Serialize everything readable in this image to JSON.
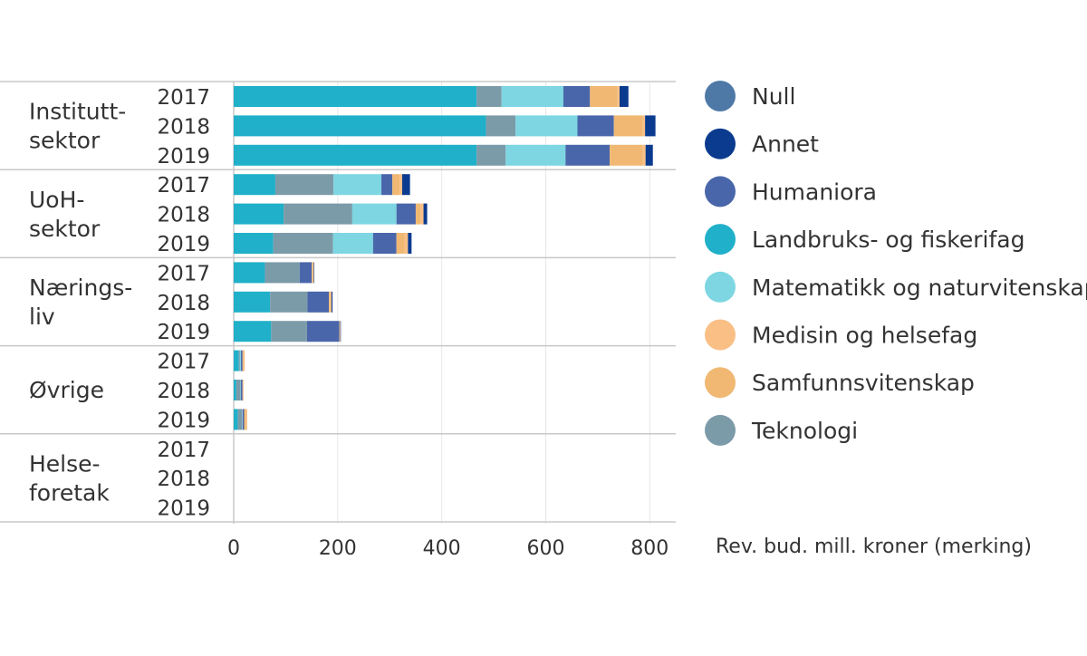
{
  "chart_data": {
    "type": "bar",
    "orientation": "horizontal",
    "stacked": true,
    "title": "",
    "xlabel": "Rev. bud. mill. kroner (merking)",
    "ylabel": "",
    "xlim": [
      0,
      850
    ],
    "xticks": [
      0,
      200,
      400,
      600,
      800
    ],
    "grid": true,
    "legend_position": "right",
    "groups": [
      {
        "label": "Institutt-\nsektor",
        "years": [
          "2017",
          "2018",
          "2019"
        ]
      },
      {
        "label": "UoH-\nsektor",
        "years": [
          "2017",
          "2018",
          "2019"
        ]
      },
      {
        "label": "Nærings-\nliv",
        "years": [
          "2017",
          "2018",
          "2019"
        ]
      },
      {
        "label": "Øvrige",
        "years": [
          "2017",
          "2018",
          "2019"
        ]
      },
      {
        "label": "Helse-\nforetak",
        "years": [
          "2017",
          "2018",
          "2019"
        ]
      }
    ],
    "stack_order": [
      "Landbruks- og fiskerifag",
      "Teknologi",
      "Matematikk og naturvitenskap",
      "Humaniora",
      "Null",
      "Samfunnsvitenskap",
      "Medisin og helsefag",
      "Annet"
    ],
    "series": [
      {
        "name": "Null",
        "color": "#4e79a7",
        "values": [
          0,
          0,
          0,
          0,
          0,
          0,
          0,
          0,
          0,
          0,
          0,
          0,
          0,
          0,
          0
        ]
      },
      {
        "name": "Annet",
        "color": "#0b3b8f",
        "values": [
          17,
          20,
          14,
          15,
          7,
          7,
          1,
          2,
          1,
          0,
          0,
          0,
          0,
          0,
          0
        ]
      },
      {
        "name": "Humaniora",
        "color": "#4a66aa",
        "values": [
          51,
          70,
          85,
          21,
          37,
          45,
          23,
          41,
          62,
          3,
          3,
          3,
          0,
          0,
          0
        ]
      },
      {
        "name": "Landbruks- og fiskerifag",
        "color": "#20b0c9",
        "values": [
          467,
          485,
          467,
          80,
          96,
          76,
          60,
          70,
          72,
          10,
          5,
          8,
          0,
          0,
          0
        ]
      },
      {
        "name": "Matematikk og naturvitenskap",
        "color": "#7dd6e2",
        "values": [
          119,
          119,
          115,
          92,
          85,
          77,
          0,
          0,
          0,
          2,
          1,
          1,
          0,
          0,
          0
        ]
      },
      {
        "name": "Medisin og helsefag",
        "color": "#f9bf85",
        "values": [
          4,
          4,
          5,
          5,
          6,
          6,
          2,
          2,
          1,
          2,
          1,
          2,
          0,
          0,
          0
        ]
      },
      {
        "name": "Samfunnsvitenskap",
        "color": "#f0b873",
        "values": [
          53,
          56,
          64,
          14,
          9,
          16,
          2,
          3,
          1,
          2,
          1,
          4,
          0,
          0,
          0
        ]
      },
      {
        "name": "Teknologi",
        "color": "#7c9ba9",
        "values": [
          48,
          57,
          56,
          112,
          132,
          115,
          67,
          72,
          69,
          2,
          8,
          8,
          0,
          0,
          0
        ]
      }
    ]
  }
}
